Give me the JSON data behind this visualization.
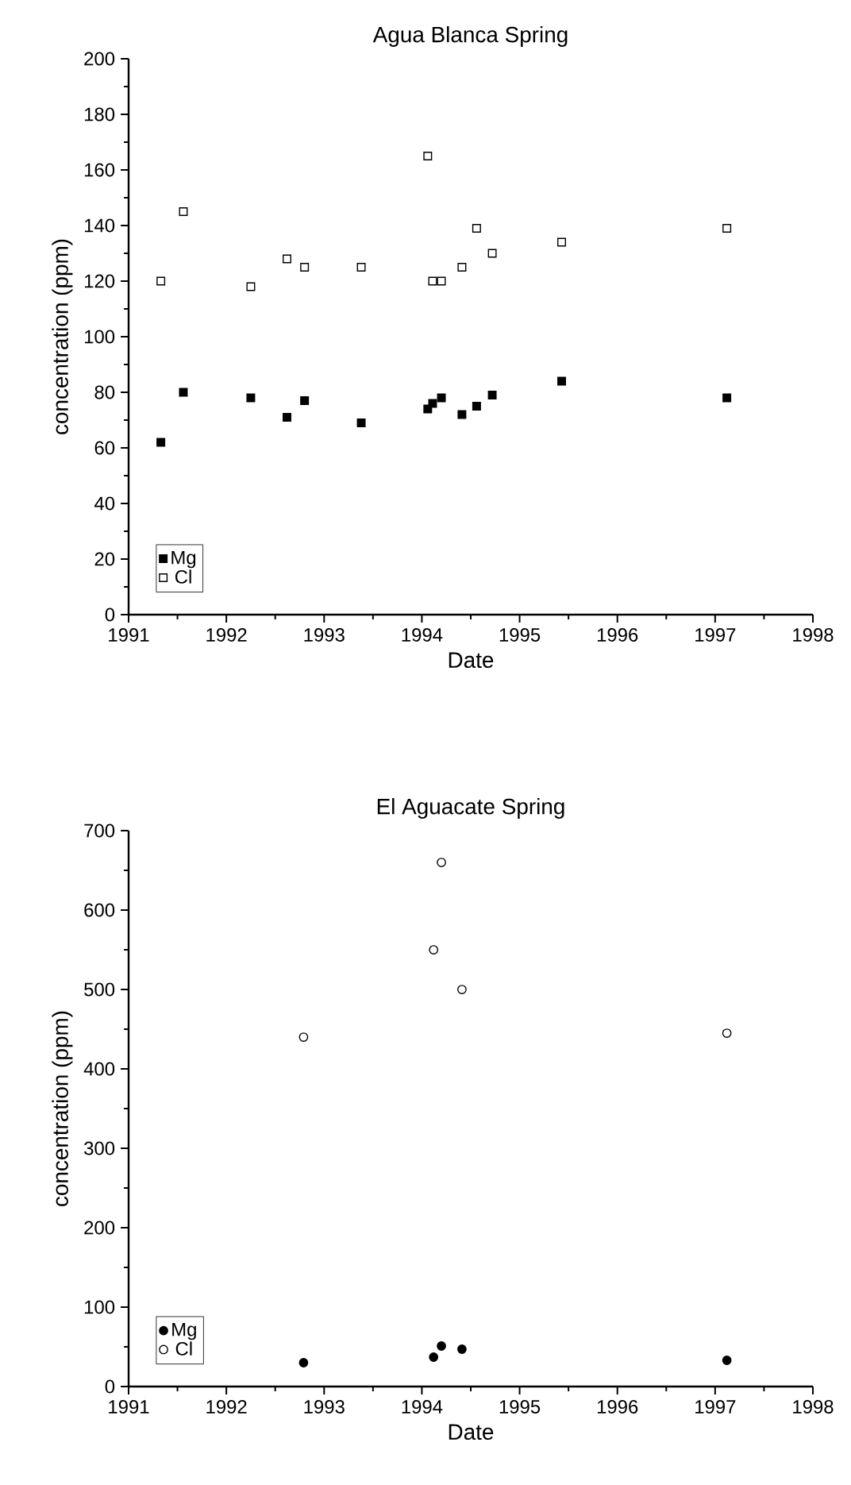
{
  "chart_data": [
    {
      "type": "scatter",
      "title": "Agua Blanca Spring",
      "xlabel": "Date",
      "ylabel": "concentration (ppm)",
      "marker": "square",
      "legend": "bottom left",
      "grid": false,
      "xlim": [
        1991,
        1998
      ],
      "xticks": [
        1991,
        1992,
        1993,
        1994,
        1995,
        1996,
        1997,
        1998
      ],
      "ylim": [
        0,
        200
      ],
      "yticks": [
        0,
        20,
        40,
        60,
        80,
        100,
        120,
        140,
        160,
        180,
        200
      ],
      "series": [
        {
          "name": "Mg",
          "color": "#000000",
          "x": [
            1991.33,
            1991.56,
            1992.25,
            1992.62,
            1992.8,
            1993.38,
            1994.06,
            1994.11,
            1994.2,
            1994.41,
            1994.56,
            1994.72,
            1995.43,
            1997.12
          ],
          "values": [
            62,
            80,
            78,
            71,
            77,
            69,
            74,
            76,
            78,
            72,
            75,
            79,
            84,
            78
          ]
        },
        {
          "name": "Cl",
          "color": "#000000",
          "x": [
            1991.33,
            1991.56,
            1992.25,
            1992.62,
            1992.8,
            1993.38,
            1994.06,
            1994.11,
            1994.2,
            1994.41,
            1994.56,
            1994.72,
            1995.43,
            1997.12
          ],
          "values": [
            120,
            145,
            118,
            128,
            125,
            125,
            165,
            120,
            120,
            125,
            139,
            130,
            134,
            139
          ]
        }
      ]
    },
    {
      "type": "scatter",
      "title": "El Aguacate Spring",
      "xlabel": "Date",
      "ylabel": "concentration (ppm)",
      "marker": "circle",
      "legend": "bottom left",
      "grid": false,
      "xlim": [
        1991,
        1998
      ],
      "xticks": [
        1991,
        1992,
        1993,
        1994,
        1995,
        1996,
        1997,
        1998
      ],
      "ylim": [
        0,
        700
      ],
      "yticks": [
        0,
        100,
        200,
        300,
        400,
        500,
        600,
        700
      ],
      "series": [
        {
          "name": "Mg",
          "color": "#000000",
          "x": [
            1992.79,
            1994.12,
            1994.2,
            1994.41,
            1997.12
          ],
          "values": [
            30,
            37,
            51,
            47,
            33
          ]
        },
        {
          "name": "Cl",
          "color": "#000000",
          "x": [
            1992.79,
            1994.12,
            1994.2,
            1994.41,
            1997.12
          ],
          "values": [
            440,
            550,
            660,
            500,
            445
          ]
        }
      ]
    }
  ]
}
